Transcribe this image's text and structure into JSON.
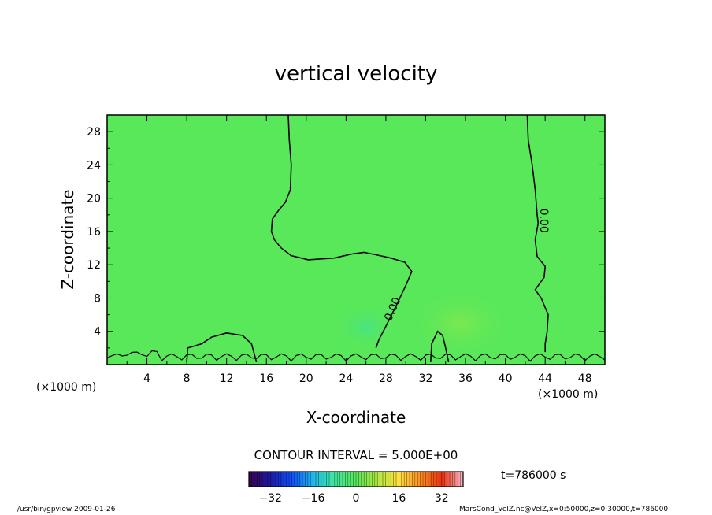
{
  "chart_data": {
    "type": "heatmap",
    "title": "vertical velocity",
    "xlabel": "X-coordinate",
    "ylabel": "Z-coordinate",
    "x_unit": "(×1000 m)",
    "y_unit": "(×1000 m)",
    "xlim": [
      0,
      50
    ],
    "ylim": [
      0,
      30
    ],
    "x_ticks": [
      4,
      8,
      12,
      16,
      20,
      24,
      28,
      32,
      36,
      40,
      44,
      48
    ],
    "y_ticks": [
      4,
      8,
      12,
      16,
      20,
      24,
      28
    ],
    "field_color": "#58E85A",
    "contour_interval_text": "CONTOUR INTERVAL = 5.000E+00",
    "contour_label": "0.00",
    "contours": [
      {
        "level": 0,
        "points": [
          [
            18.2,
            30
          ],
          [
            18.3,
            27
          ],
          [
            18.5,
            24
          ],
          [
            18.4,
            21
          ],
          [
            17.9,
            19.5
          ],
          [
            17.2,
            18.5
          ],
          [
            16.6,
            17.5
          ],
          [
            16.5,
            16
          ],
          [
            16.8,
            15
          ],
          [
            17.5,
            14
          ],
          [
            18.5,
            13.1
          ],
          [
            20.2,
            12.6
          ],
          [
            22.8,
            12.8
          ],
          [
            24.6,
            13.3
          ],
          [
            25.8,
            13.5
          ],
          [
            27.0,
            13.2
          ],
          [
            28.5,
            12.8
          ],
          [
            29.9,
            12.3
          ],
          [
            30.6,
            11.2
          ],
          [
            30.0,
            9.5
          ],
          [
            29.0,
            7.0
          ],
          [
            28.0,
            4.6
          ],
          [
            27.3,
            3.0
          ],
          [
            27.0,
            2.0
          ]
        ]
      },
      {
        "level": 0,
        "points": [
          [
            42.2,
            30
          ],
          [
            42.3,
            27
          ],
          [
            42.7,
            24
          ],
          [
            43.0,
            21
          ],
          [
            43.2,
            18
          ],
          [
            43.3,
            17.0
          ],
          [
            43.0,
            15.0
          ],
          [
            43.2,
            13.0
          ],
          [
            44.0,
            11.8
          ],
          [
            43.9,
            10.5
          ],
          [
            43.0,
            9.0
          ],
          [
            43.6,
            8.0
          ],
          [
            44.3,
            6.0
          ],
          [
            44.2,
            4.0
          ],
          [
            44.0,
            2.5
          ],
          [
            44.0,
            1.5
          ]
        ]
      },
      {
        "level": 0,
        "points": [
          [
            8.0,
            0.3
          ],
          [
            8.1,
            2.0
          ],
          [
            9.5,
            2.5
          ],
          [
            10.5,
            3.3
          ],
          [
            12.0,
            3.8
          ],
          [
            13.6,
            3.5
          ],
          [
            14.5,
            2.5
          ],
          [
            14.8,
            1.2
          ],
          [
            15.0,
            0.3
          ]
        ]
      },
      {
        "level": 0,
        "points": [
          [
            32.5,
            0.3
          ],
          [
            32.6,
            2.5
          ],
          [
            33.2,
            4.0
          ],
          [
            33.7,
            3.5
          ],
          [
            34.0,
            2.0
          ],
          [
            34.3,
            0.3
          ]
        ]
      }
    ],
    "legend": {
      "labels": [
        "−32",
        "−16",
        "0",
        "16",
        "32"
      ],
      "ticks": [
        -32,
        -16,
        0,
        16,
        32
      ],
      "range": [
        -40,
        40
      ],
      "colors": [
        "#3a0050",
        "#1a1aa0",
        "#1050ff",
        "#20b8e8",
        "#40e8a0",
        "#58e85a",
        "#b0e840",
        "#ffe040",
        "#ff9020",
        "#e83010",
        "#f8b8c8"
      ]
    }
  },
  "time_text": "t=786000 s",
  "footer": {
    "left": "/usr/bin/gpview   2009-01-26",
    "right": "MarsCond_VelZ.nc@VelZ,x=0:50000,z=0:30000,t=786000"
  }
}
